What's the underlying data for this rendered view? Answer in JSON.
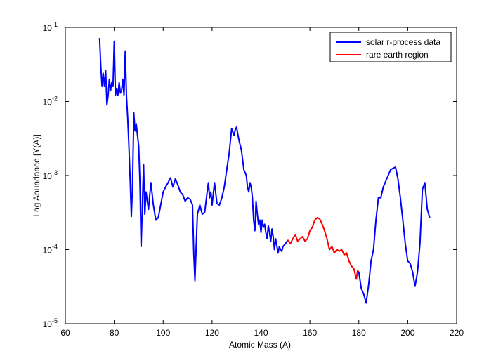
{
  "chart_data": {
    "type": "line",
    "title": "",
    "xlabel": "Atomic Mass (A)",
    "ylabel": "Log Abundance   [Y(A)]",
    "xlim": [
      60,
      220
    ],
    "ylim": [
      1e-05,
      0.1
    ],
    "yscale": "log",
    "xticks": [
      60,
      80,
      100,
      120,
      140,
      160,
      180,
      200,
      220
    ],
    "ytick_exponents": [
      "-5",
      "-4",
      "-3",
      "-2",
      "-1"
    ],
    "ytick_base": "10",
    "grid": false,
    "legend_position": "top-right",
    "series": [
      {
        "name": "solar r-process data",
        "color": "#0000ff",
        "points": [
          [
            74,
            0.072
          ],
          [
            74.5,
            0.03
          ],
          [
            75,
            0.016
          ],
          [
            75.5,
            0.024
          ],
          [
            76,
            0.016
          ],
          [
            76.5,
            0.026
          ],
          [
            77,
            0.009
          ],
          [
            77.5,
            0.012
          ],
          [
            78,
            0.02
          ],
          [
            78.5,
            0.014
          ],
          [
            79,
            0.018
          ],
          [
            79.5,
            0.016
          ],
          [
            80,
            0.065
          ],
          [
            80.5,
            0.012
          ],
          [
            81,
            0.015
          ],
          [
            81.5,
            0.012
          ],
          [
            82,
            0.018
          ],
          [
            82.5,
            0.013
          ],
          [
            83,
            0.014
          ],
          [
            83.5,
            0.02
          ],
          [
            84,
            0.012
          ],
          [
            84.5,
            0.048
          ],
          [
            85,
            0.012
          ],
          [
            85.5,
            0.006
          ],
          [
            86,
            0.0025
          ],
          [
            86.5,
            0.0009
          ],
          [
            87,
            0.00028
          ],
          [
            87.5,
            0.0008
          ],
          [
            88,
            0.007
          ],
          [
            88.5,
            0.004
          ],
          [
            89,
            0.005
          ],
          [
            89.5,
            0.0035
          ],
          [
            90,
            0.0025
          ],
          [
            90.5,
            0.0008
          ],
          [
            91,
            0.00011
          ],
          [
            91.5,
            0.0004
          ],
          [
            92,
            0.0014
          ],
          [
            92.5,
            0.0003
          ],
          [
            93,
            0.0006
          ],
          [
            94,
            0.00035
          ],
          [
            95,
            0.0008
          ],
          [
            96,
            0.0004
          ],
          [
            97,
            0.00025
          ],
          [
            98,
            0.00027
          ],
          [
            99,
            0.0004
          ],
          [
            100,
            0.0006
          ],
          [
            101,
            0.0007
          ],
          [
            102,
            0.0008
          ],
          [
            103,
            0.00093
          ],
          [
            104,
            0.0007
          ],
          [
            105,
            0.0009
          ],
          [
            106,
            0.00075
          ],
          [
            107,
            0.0006
          ],
          [
            108,
            0.00055
          ],
          [
            108.5,
            0.0005
          ],
          [
            109,
            0.00045
          ],
          [
            110,
            0.0005
          ],
          [
            111,
            0.00048
          ],
          [
            112,
            0.0004
          ],
          [
            112.5,
            9e-05
          ],
          [
            113,
            3.8e-05
          ],
          [
            113.5,
            0.00011
          ],
          [
            114,
            0.0003
          ],
          [
            115,
            0.0004
          ],
          [
            116,
            0.0003
          ],
          [
            117,
            0.00032
          ],
          [
            118,
            0.0006
          ],
          [
            118.5,
            0.0008
          ],
          [
            119,
            0.0005
          ],
          [
            119.5,
            0.0006
          ],
          [
            120,
            0.0004
          ],
          [
            121,
            0.0008
          ],
          [
            122,
            0.00042
          ],
          [
            123,
            0.0004
          ],
          [
            124,
            0.0005
          ],
          [
            125,
            0.0007
          ],
          [
            126,
            0.0012
          ],
          [
            127,
            0.002
          ],
          [
            128,
            0.0043
          ],
          [
            129,
            0.0035
          ],
          [
            129.5,
            0.0042
          ],
          [
            130,
            0.0045
          ],
          [
            131,
            0.003
          ],
          [
            132,
            0.0022
          ],
          [
            133,
            0.0012
          ],
          [
            134,
            0.001
          ],
          [
            134.5,
            0.0007
          ],
          [
            135,
            0.0006
          ],
          [
            135.5,
            0.0008
          ],
          [
            136,
            0.0007
          ],
          [
            136.5,
            0.0005
          ],
          [
            137,
            0.00025
          ],
          [
            137.5,
            0.00018
          ],
          [
            138,
            0.00045
          ],
          [
            138.5,
            0.0003
          ],
          [
            139,
            0.00022
          ],
          [
            139.5,
            0.00025
          ],
          [
            140,
            0.00017
          ],
          [
            140.5,
            0.00025
          ],
          [
            141,
            0.0002
          ],
          [
            141.5,
            0.00022
          ],
          [
            142,
            0.00017
          ],
          [
            142.5,
            0.00014
          ],
          [
            143,
            0.00021
          ],
          [
            143.5,
            0.00017
          ],
          [
            144,
            0.00013
          ],
          [
            144.5,
            0.00019
          ],
          [
            145,
            0.00015
          ],
          [
            145.5,
            0.0001
          ],
          [
            146,
            0.00014
          ],
          [
            147,
            9e-05
          ],
          [
            147.5,
            0.00011
          ],
          [
            148,
            0.0001
          ],
          [
            148.5,
            9.5e-05
          ],
          [
            149,
            0.00011
          ],
          [
            150,
            0.00012
          ],
          [
            151,
            0.000135
          ]
        ]
      },
      {
        "name": "rare earth region",
        "color": "#ff0000",
        "points": [
          [
            151,
            0.000135
          ],
          [
            152,
            0.00012
          ],
          [
            153,
            0.00014
          ],
          [
            154,
            0.00016
          ],
          [
            155,
            0.00013
          ],
          [
            156,
            0.00014
          ],
          [
            157,
            0.00015
          ],
          [
            158,
            0.00013
          ],
          [
            159,
            0.00014
          ],
          [
            160,
            0.00018
          ],
          [
            161,
            0.0002
          ],
          [
            162,
            0.00025
          ],
          [
            163,
            0.00027
          ],
          [
            164,
            0.00026
          ],
          [
            165,
            0.00022
          ],
          [
            166,
            0.00018
          ],
          [
            167,
            0.00014
          ],
          [
            168,
            0.0001
          ],
          [
            169,
            0.00011
          ],
          [
            170,
            9e-05
          ],
          [
            171,
            0.0001
          ],
          [
            172,
            9.5e-05
          ],
          [
            173,
            0.0001
          ],
          [
            174,
            8.5e-05
          ],
          [
            175,
            9e-05
          ],
          [
            176,
            7e-05
          ],
          [
            177,
            6e-05
          ],
          [
            178,
            5.5e-05
          ],
          [
            179,
            4e-05
          ],
          [
            179.5,
            5.2e-05
          ],
          [
            180,
            5e-05
          ]
        ]
      },
      {
        "name": "",
        "color": "#0000ff",
        "points": [
          [
            180,
            5e-05
          ],
          [
            181,
            3e-05
          ],
          [
            182,
            2.5e-05
          ],
          [
            183,
            1.9e-05
          ],
          [
            184,
            3.3e-05
          ],
          [
            185,
            7e-05
          ],
          [
            186,
            0.0001
          ],
          [
            187,
            0.00025
          ],
          [
            188,
            0.0005
          ],
          [
            189,
            0.0005
          ],
          [
            190,
            0.0007
          ],
          [
            192,
            0.001
          ],
          [
            193,
            0.0012
          ],
          [
            194,
            0.00125
          ],
          [
            195,
            0.0013
          ],
          [
            196,
            0.0009
          ],
          [
            197,
            0.0005
          ],
          [
            198,
            0.00025
          ],
          [
            199,
            0.00012
          ],
          [
            200,
            7e-05
          ],
          [
            201,
            6.5e-05
          ],
          [
            202,
            5e-05
          ],
          [
            203,
            3.2e-05
          ],
          [
            204,
            5e-05
          ],
          [
            205,
            0.00012
          ],
          [
            206,
            0.00065
          ],
          [
            207,
            0.0008
          ],
          [
            208,
            0.00035
          ],
          [
            209,
            0.00027
          ]
        ]
      }
    ]
  }
}
